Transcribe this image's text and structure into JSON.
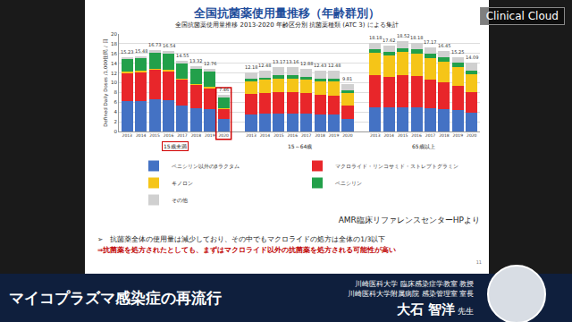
{
  "chart_data": {
    "type": "bar",
    "title": "全国抗菌薬使用量推移 2013-2020 年齢区分別 抗菌薬種類 (ATC 3) による集計",
    "y_label": "Defined Daily Doses /1,000住民 / 日",
    "categories": [
      "2013",
      "2014",
      "2015",
      "2016",
      "2017",
      "2018",
      "2019",
      "2020",
      null,
      "2013",
      "2014",
      "2015",
      "2016",
      "2017",
      "2018",
      "2019",
      "2020",
      null,
      "2013",
      "2014",
      "2015",
      "2016",
      "2017",
      "2018",
      "2019",
      "2020"
    ],
    "groups": [
      "15歳未満",
      "15～64歳",
      "65歳以上"
    ],
    "stacked": true,
    "legend": "bottom",
    "grid": true,
    "ylim": [
      0,
      20
    ],
    "yticks": [
      0,
      2,
      4,
      6,
      8,
      10,
      12,
      14,
      16,
      18,
      20
    ],
    "totals": [
      15.23,
      15.48,
      16.73,
      16.54,
      14.55,
      13.32,
      12.76,
      7.46,
      null,
      12.18,
      12.48,
      13.17,
      13.16,
      12.88,
      12.43,
      12.48,
      9.81,
      null,
      18.18,
      17.62,
      18.52,
      18.18,
      17.17,
      16.45,
      15.25,
      14.09
    ],
    "series": [
      {
        "name": "ペニシリン以外のβラクタム",
        "color": "#4472c4",
        "values": [
          6.2,
          6.3,
          6.6,
          6.5,
          5.4,
          4.8,
          4.5,
          2.5,
          null,
          3.5,
          3.6,
          3.7,
          3.7,
          3.6,
          3.4,
          3.4,
          2.5,
          null,
          5.0,
          4.9,
          5.0,
          4.9,
          4.8,
          4.6,
          4.4,
          3.8
        ]
      },
      {
        "name": "マクロライド・リンコサミド・ストレプトグラミン",
        "color": "#e8262a",
        "values": [
          5.8,
          5.8,
          6.0,
          5.8,
          5.2,
          4.7,
          4.3,
          2.0,
          null,
          4.2,
          4.3,
          4.4,
          4.4,
          4.2,
          4.1,
          4.0,
          2.8,
          null,
          6.6,
          6.3,
          6.6,
          6.4,
          5.8,
          5.5,
          5.0,
          4.2
        ]
      },
      {
        "name": "キノロン",
        "color": "#f5c518",
        "values": [
          0.3,
          0.3,
          0.3,
          0.3,
          0.3,
          0.3,
          0.3,
          0.2,
          null,
          2.6,
          2.7,
          2.8,
          2.8,
          2.8,
          2.7,
          2.8,
          2.5,
          null,
          4.6,
          4.4,
          4.7,
          4.7,
          4.5,
          4.3,
          3.9,
          3.7
        ]
      },
      {
        "name": "ペニシリン",
        "color": "#22a04a",
        "values": [
          2.6,
          2.7,
          3.2,
          3.3,
          3.1,
          3.0,
          3.2,
          2.2,
          null,
          0.5,
          0.5,
          0.6,
          0.6,
          0.6,
          0.6,
          0.7,
          0.6,
          null,
          0.7,
          0.7,
          0.8,
          0.8,
          0.8,
          0.8,
          0.8,
          0.8
        ]
      },
      {
        "name": "その他",
        "color": "#d0d0d0",
        "values": [
          0.33,
          0.38,
          0.63,
          0.64,
          0.55,
          0.52,
          0.46,
          0.56,
          null,
          1.38,
          1.38,
          1.67,
          1.66,
          1.68,
          1.63,
          1.58,
          1.41,
          null,
          1.28,
          1.32,
          1.42,
          1.38,
          1.27,
          1.25,
          1.15,
          1.59
        ]
      }
    ]
  },
  "slide": {
    "heading": "全国抗菌薬使用量推移（年齢群別）",
    "source": "AMR臨床リファレンスセンターHPより",
    "notes": [
      "➢　抗菌薬全体の使用量は減少しており、その中でもマクロライドの処方は全体の1/3以下",
      "⇒抗菌薬を処方されたとしても、まずはマクロライド以外の抗菌薬を処方される可能性が高い"
    ],
    "page": "11",
    "brand": "Clinical Cloud",
    "banner": "マイコプラズマ感染症の再流行",
    "affiliations": [
      "川崎医科大学 臨床感染症学教室 教授",
      "川崎医科大学附属病院 感染管理室 室長"
    ],
    "speaker": "大石 智洋",
    "honorific": "先生"
  }
}
